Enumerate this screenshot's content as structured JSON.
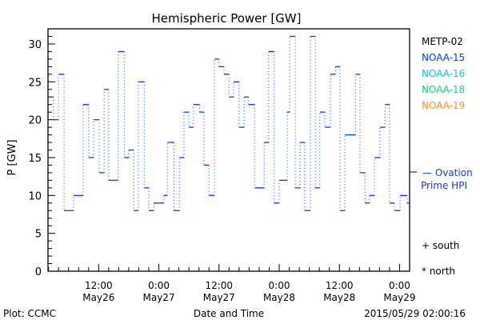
{
  "chart_data": {
    "type": "line",
    "title": "Hemispheric Power [GW]",
    "xlabel": "Date and Time",
    "ylabel": "P [GW]",
    "ylim": [
      0,
      32
    ],
    "xlim_hours_from_May26_0000": [
      1.9,
      74
    ],
    "y_ticks": [
      "0",
      "5",
      "10",
      "15",
      "20",
      "25",
      "30"
    ],
    "x_ticks": [
      {
        "hour": 12,
        "time": "12:00",
        "date": "May26"
      },
      {
        "hour": 24,
        "time": "0:00",
        "date": "May27"
      },
      {
        "hour": 36,
        "time": "12:00",
        "date": "May27"
      },
      {
        "hour": 48,
        "time": "0:00",
        "date": "May28"
      },
      {
        "hour": 60,
        "time": "12:00",
        "date": "May28"
      },
      {
        "hour": 72,
        "time": "0:00",
        "date": "May29"
      }
    ],
    "series": [
      {
        "name": "NOAA-15",
        "color": "#0040ff",
        "style": "step",
        "x": [
          1.9,
          3,
          4,
          5.1,
          7,
          8.9,
          10,
          11,
          12.1,
          13.1,
          14,
          15.9,
          17.1,
          18,
          19,
          19.9,
          21.1,
          22,
          23,
          25,
          25.7,
          27,
          28.1,
          29,
          30,
          30.9,
          32.1,
          33,
          34,
          35.1,
          36,
          37,
          38,
          38.9,
          40,
          41,
          41.9,
          43.1,
          45,
          45.9,
          47,
          48,
          49.6,
          50.1,
          51.2,
          52.2,
          53.1,
          54.2,
          55.2,
          56.1,
          57.1,
          58.2,
          59.2,
          60.1,
          61.1,
          63.2,
          64.1,
          65.1,
          66,
          67,
          68.1,
          69.1,
          70,
          71,
          72.1,
          73.5
        ],
        "values": [
          23,
          20,
          26,
          8,
          10,
          22,
          15,
          20,
          13,
          24,
          12,
          29,
          15,
          16,
          8,
          25,
          11,
          8,
          9,
          10,
          17,
          8,
          15,
          21,
          19,
          22,
          21,
          14,
          10,
          28,
          27,
          26,
          23,
          25,
          19,
          23,
          22,
          11,
          17,
          29,
          9,
          12,
          21,
          31,
          11,
          17,
          8,
          31,
          11,
          21,
          19,
          26,
          27,
          8,
          18,
          26,
          13,
          9,
          10,
          15,
          19,
          22,
          9,
          8,
          10,
          9
        ],
        "end": 74
      }
    ],
    "ovation_prime_hpi": 13.1,
    "legend": [
      {
        "label": "METP-02",
        "color": "#000000"
      },
      {
        "label": "NOAA-15",
        "color": "#0040ff"
      },
      {
        "label": "NOAA-16",
        "color": "#00c8ff"
      },
      {
        "label": "NOAA-18",
        "color": "#00e080"
      },
      {
        "label": "NOAA-19",
        "color": "#ff9020"
      }
    ],
    "ovation_label_1": "— Ovation",
    "ovation_label_2": "Prime HPI",
    "south_label": "+ south",
    "north_label": "* north",
    "footer_left": "Plot: CCMC",
    "footer_right": "2015/05/29 02:00:16"
  }
}
